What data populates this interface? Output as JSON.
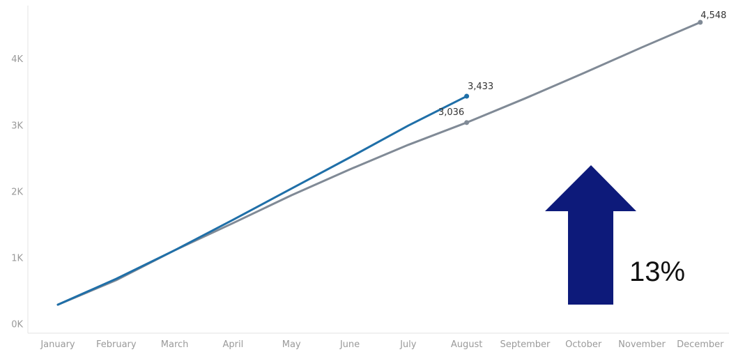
{
  "chart_data": {
    "type": "line",
    "categories": [
      "January",
      "February",
      "March",
      "April",
      "May",
      "June",
      "July",
      "August",
      "September",
      "October",
      "November",
      "December"
    ],
    "y_ticks": [
      {
        "value": 0,
        "label": "0K"
      },
      {
        "value": 1000,
        "label": "1K"
      },
      {
        "value": 2000,
        "label": "2K"
      },
      {
        "value": 3000,
        "label": "3K"
      },
      {
        "value": 4000,
        "label": "4K"
      }
    ],
    "ylim": [
      -140,
      4800
    ],
    "grid": false,
    "series": [
      {
        "color": "#1f6fa8",
        "values": [
          290,
          680,
          1110,
          1570,
          2040,
          2510,
          2990,
          3433,
          null,
          null,
          null,
          null
        ],
        "labels": [
          {
            "index": 7,
            "text": "3,433"
          }
        ]
      },
      {
        "color": "#808a96",
        "values": [
          290,
          660,
          1110,
          1520,
          1940,
          2330,
          2700,
          3036,
          3400,
          3780,
          4170,
          4548
        ],
        "labels": [
          {
            "index": 7,
            "text": "3,036"
          },
          {
            "index": 11,
            "text": "4,548"
          }
        ]
      }
    ],
    "annotation": {
      "text": "13%",
      "arrow_color": "#0d1a7a",
      "direction": "up"
    }
  }
}
